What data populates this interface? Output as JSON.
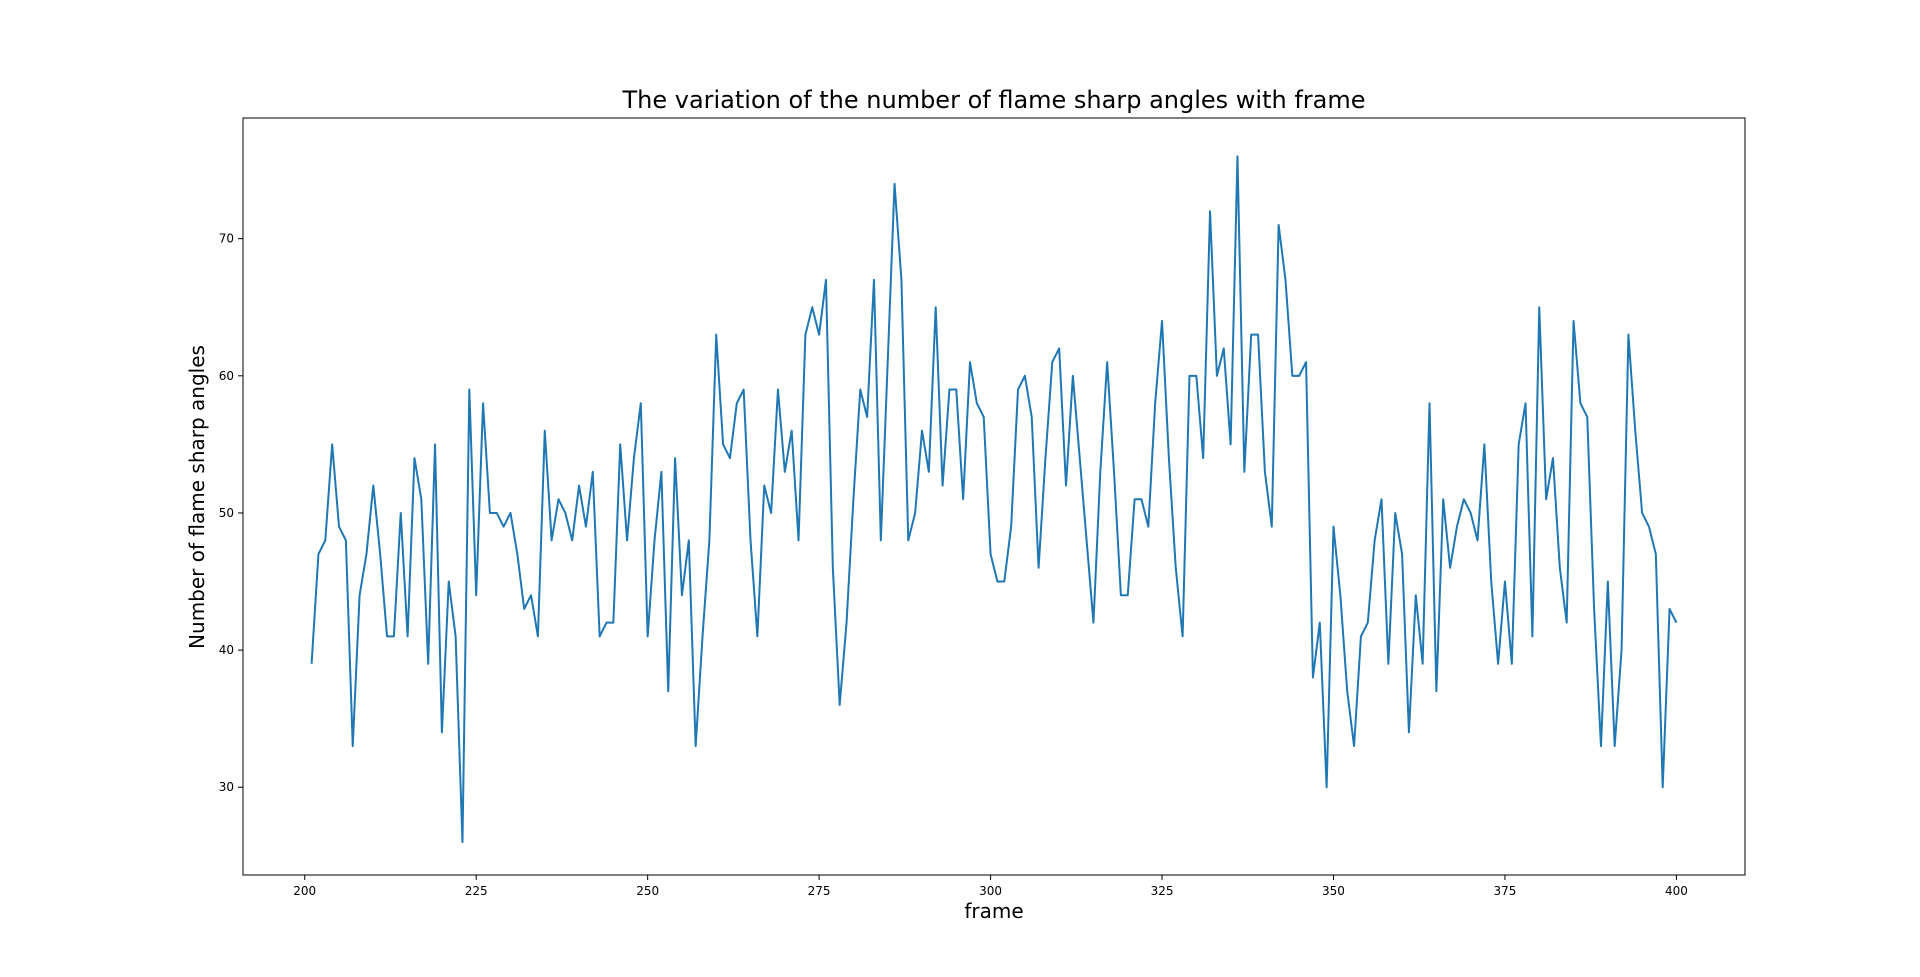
{
  "chart_data": {
    "type": "line",
    "title": "The variation of the number of flame sharp angles with frame",
    "xlabel": "frame",
    "ylabel": "Number of flame sharp angles",
    "xlim": [
      191,
      410
    ],
    "ylim": [
      23.6,
      78.8
    ],
    "xticks": [
      200,
      225,
      250,
      275,
      300,
      325,
      350,
      375,
      400
    ],
    "yticks": [
      30,
      40,
      50,
      60,
      70
    ],
    "grid": false,
    "legend": "none",
    "line_color": "#1f77b4",
    "x_start": 201,
    "x_end": 400,
    "series": [
      {
        "values": [
          39,
          47,
          48,
          55,
          49,
          48,
          33,
          44,
          47,
          52,
          47,
          41,
          41,
          50,
          41,
          54,
          51,
          39,
          55,
          34,
          45,
          41,
          26,
          59,
          44,
          58,
          50,
          50,
          49,
          50,
          47,
          43,
          44,
          41,
          56,
          48,
          51,
          50,
          48,
          52,
          49,
          53,
          41,
          42,
          42,
          55,
          48,
          54,
          58,
          41,
          48,
          53,
          37,
          54,
          44,
          48,
          33,
          41,
          48,
          63,
          55,
          54,
          58,
          59,
          48,
          41,
          52,
          50,
          59,
          53,
          56,
          48,
          63,
          65,
          63,
          67,
          46,
          36,
          42,
          51,
          59,
          57,
          67,
          48,
          61,
          74,
          67,
          48,
          50,
          56,
          53,
          65,
          52,
          59,
          59,
          51,
          61,
          58,
          57,
          47,
          45,
          45,
          49,
          59,
          60,
          57,
          46,
          54,
          61,
          62,
          52,
          60,
          54,
          48,
          42,
          53,
          61,
          53,
          44,
          44,
          51,
          51,
          49,
          58,
          64,
          54,
          46,
          41,
          60,
          60,
          54,
          72,
          60,
          62,
          55,
          76,
          53,
          63,
          63,
          53,
          49,
          71,
          67,
          60,
          60,
          61,
          38,
          42,
          30,
          49,
          44,
          37,
          33,
          41,
          42,
          48,
          51,
          39,
          50,
          47,
          34,
          44,
          39,
          58,
          37,
          51,
          46,
          49,
          51,
          50,
          48,
          55,
          45,
          39,
          45,
          39,
          55,
          58,
          41,
          65,
          51,
          54,
          46,
          42,
          64,
          58,
          57,
          43,
          33,
          45,
          33,
          40,
          63,
          56,
          50,
          49,
          47,
          30,
          43,
          42
        ]
      }
    ]
  }
}
